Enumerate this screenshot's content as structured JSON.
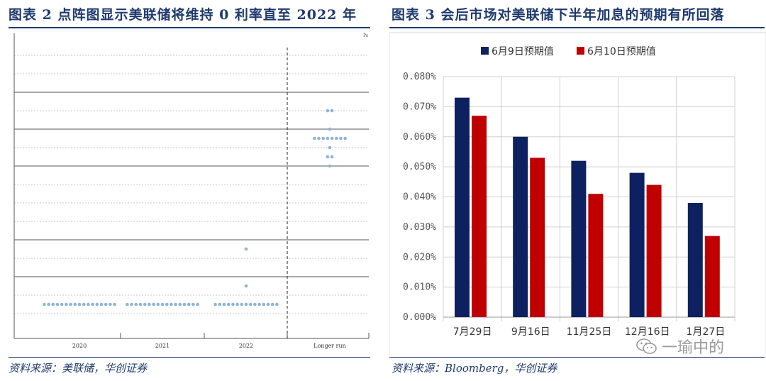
{
  "figure_left": {
    "title": "图表 2   点阵图显示美联储将维持 0 利率直至 2022 年",
    "source": "资料来源：美联储，华创证券",
    "corner_label": "Pe",
    "chart_data": {
      "type": "scatter",
      "title": "",
      "xlabel": "",
      "ylabel": "",
      "categories": [
        "2020",
        "2021",
        "2022",
        "Longer run"
      ],
      "x_labels": [
        "2020",
        "2021",
        "2022",
        "Longer run"
      ],
      "ylim": [
        -0.125,
        3.625
      ],
      "y_gridlines": [
        0,
        0.25,
        0.5,
        0.75,
        1,
        1.25,
        1.5,
        1.75,
        2,
        2.25,
        2.5,
        2.75,
        3,
        3.25,
        3.5
      ],
      "y_major_gridlines": [
        0.5,
        1,
        2,
        2.5,
        3
      ],
      "grid": true,
      "dot_color": "#8fb3d9",
      "dots": [
        {
          "category": "2020",
          "value": 0.125,
          "count": 17
        },
        {
          "category": "2021",
          "value": 0.125,
          "count": 17
        },
        {
          "category": "2022",
          "value": 0.125,
          "count": 15
        },
        {
          "category": "2022",
          "value": 0.375,
          "count": 1
        },
        {
          "category": "2022",
          "value": 0.875,
          "count": 1
        },
        {
          "category": "Longer run",
          "value": 2.0,
          "count": 1
        },
        {
          "category": "Longer run",
          "value": 2.125,
          "count": 2
        },
        {
          "category": "Longer run",
          "value": 2.25,
          "count": 1
        },
        {
          "category": "Longer run",
          "value": 2.375,
          "count": 8
        },
        {
          "category": "Longer run",
          "value": 2.5,
          "count": 1
        },
        {
          "category": "Longer run",
          "value": 2.75,
          "count": 2
        }
      ]
    }
  },
  "figure_right": {
    "title": "图表 3   会后市场对美联储下半年加息的预期有所回落",
    "source": "资料来源：Bloomberg，华创证券",
    "watermark": "一瑜中的",
    "chart_data": {
      "type": "bar",
      "title": "",
      "xlabel": "",
      "ylabel": "",
      "categories": [
        "7月29日",
        "9月16日",
        "11月25日",
        "12月16日",
        "1月27日"
      ],
      "series": [
        {
          "name": "6月9日预期值",
          "color": "#0d2161",
          "values": [
            0.073,
            0.06,
            0.052,
            0.048,
            0.038
          ]
        },
        {
          "name": "6月10日预期值",
          "color": "#c00000",
          "values": [
            0.067,
            0.053,
            0.041,
            0.044,
            0.027
          ]
        }
      ],
      "ylim": [
        0,
        0.08
      ],
      "yticks": [
        "0.000%",
        "0.010%",
        "0.020%",
        "0.030%",
        "0.040%",
        "0.050%",
        "0.060%",
        "0.070%",
        "0.080%"
      ],
      "grid": true,
      "legend_position": "top-center"
    }
  }
}
